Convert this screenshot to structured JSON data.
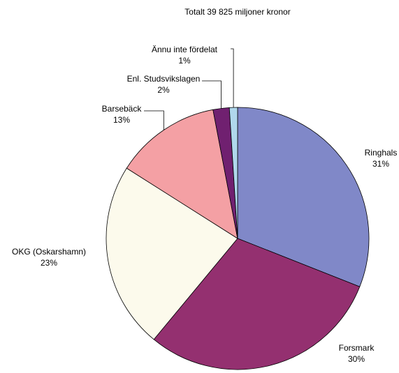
{
  "chart_data": {
    "type": "pie",
    "title": "Totalt 39 825 miljoner kronor",
    "categories": [
      "Ringhals",
      "Forsmark",
      "OKG (Oskarshamn)",
      "Barsebäck",
      "Enl. Studsvikslagen",
      "Ännu inte fördelat"
    ],
    "values": [
      31,
      30,
      23,
      13,
      2,
      1
    ],
    "value_labels": [
      "31%",
      "30%",
      "23%",
      "13%",
      "2%",
      "1%"
    ],
    "colors": [
      "#8088c8",
      "#943070",
      "#fcfaec",
      "#f4a0a4",
      "#702070",
      "#b0d8ec"
    ]
  }
}
